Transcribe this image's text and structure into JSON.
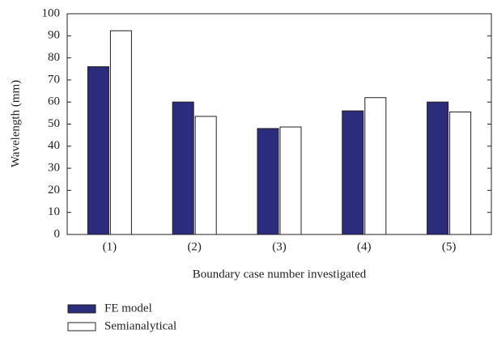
{
  "chart_data": {
    "type": "bar",
    "ylabel": "Wavelength (mm)",
    "xlabel": "Boundary case number investigated",
    "categories": [
      "(1)",
      "(2)",
      "(3)",
      "(4)",
      "(5)"
    ],
    "series": [
      {
        "name": "FE model",
        "color": "#2b2c7c",
        "values": [
          76,
          60,
          48,
          56,
          60
        ]
      },
      {
        "name": "Semianalytical",
        "color": "#ffffff",
        "values": [
          92.3,
          53.5,
          48.7,
          62,
          55.5
        ]
      }
    ],
    "ylim": [
      0,
      100
    ],
    "yticks": [
      0,
      10,
      20,
      30,
      40,
      50,
      60,
      70,
      80,
      90,
      100
    ],
    "legend": "bottom-left"
  }
}
